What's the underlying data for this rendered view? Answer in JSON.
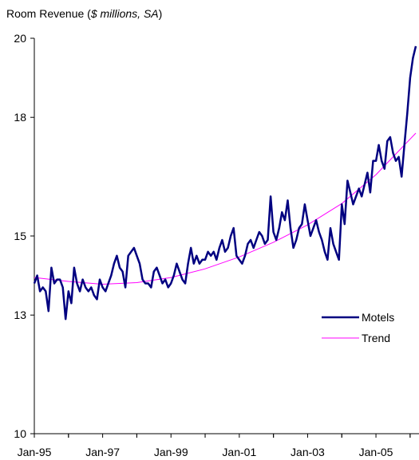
{
  "chart_data": {
    "type": "line",
    "title": {
      "prefix": "Room Revenue (",
      "italic": "$ millions, SA",
      "suffix": ")"
    },
    "xlabel": "",
    "ylabel": "",
    "ylim": [
      10,
      20
    ],
    "y_ticks": [
      10,
      13,
      15,
      18,
      20
    ],
    "x_ticks": [
      "Jan-95",
      "Jan-97",
      "Jan-99",
      "Jan-01",
      "Jan-03",
      "Jan-05"
    ],
    "x_range": [
      "1995-01",
      "2006-03"
    ],
    "grid": false,
    "legend_position": "right-middle",
    "series": [
      {
        "name": "Motels",
        "color": "#000080",
        "x": [
          "1995-01",
          "1995-02",
          "1995-03",
          "1995-04",
          "1995-05",
          "1995-06",
          "1995-07",
          "1995-08",
          "1995-09",
          "1995-10",
          "1995-11",
          "1995-12",
          "1996-01",
          "1996-02",
          "1996-03",
          "1996-04",
          "1996-05",
          "1996-06",
          "1996-07",
          "1996-08",
          "1996-09",
          "1996-10",
          "1996-11",
          "1996-12",
          "1997-01",
          "1997-02",
          "1997-03",
          "1997-04",
          "1997-05",
          "1997-06",
          "1997-07",
          "1997-08",
          "1997-09",
          "1997-10",
          "1997-11",
          "1997-12",
          "1998-01",
          "1998-02",
          "1998-03",
          "1998-04",
          "1998-05",
          "1998-06",
          "1998-07",
          "1998-08",
          "1998-09",
          "1998-10",
          "1998-11",
          "1998-12",
          "1999-01",
          "1999-02",
          "1999-03",
          "1999-04",
          "1999-05",
          "1999-06",
          "1999-07",
          "1999-08",
          "1999-09",
          "1999-10",
          "1999-11",
          "1999-12",
          "2000-01",
          "2000-02",
          "2000-03",
          "2000-04",
          "2000-05",
          "2000-06",
          "2000-07",
          "2000-08",
          "2000-09",
          "2000-10",
          "2000-11",
          "2000-12",
          "2001-01",
          "2001-02",
          "2001-03",
          "2001-04",
          "2001-05",
          "2001-06",
          "2001-07",
          "2001-08",
          "2001-09",
          "2001-10",
          "2001-11",
          "2001-12",
          "2002-01",
          "2002-02",
          "2002-03",
          "2002-04",
          "2002-05",
          "2002-06",
          "2002-07",
          "2002-08",
          "2002-09",
          "2002-10",
          "2002-11",
          "2002-12",
          "2003-01",
          "2003-02",
          "2003-03",
          "2003-04",
          "2003-05",
          "2003-06",
          "2003-07",
          "2003-08",
          "2003-09",
          "2003-10",
          "2003-11",
          "2003-12",
          "2004-01",
          "2004-02",
          "2004-03",
          "2004-04",
          "2004-05",
          "2004-06",
          "2004-07",
          "2004-08",
          "2004-09",
          "2004-10",
          "2004-11",
          "2004-12",
          "2005-01",
          "2005-02",
          "2005-03",
          "2005-04",
          "2005-05",
          "2005-06",
          "2005-07",
          "2005-08",
          "2005-09",
          "2005-10",
          "2005-11",
          "2005-12",
          "2006-01",
          "2006-02",
          "2006-03"
        ],
        "values": [
          13.8,
          14.0,
          13.6,
          13.7,
          13.6,
          13.1,
          14.2,
          13.8,
          13.9,
          13.9,
          13.7,
          12.9,
          13.6,
          13.3,
          14.2,
          13.8,
          13.6,
          13.9,
          13.7,
          13.6,
          13.7,
          13.5,
          13.4,
          13.9,
          13.7,
          13.6,
          13.8,
          14.0,
          14.3,
          14.5,
          14.2,
          14.1,
          13.7,
          14.5,
          14.6,
          14.7,
          14.5,
          14.3,
          13.9,
          13.8,
          13.8,
          13.7,
          14.1,
          14.2,
          14.0,
          13.8,
          13.9,
          13.7,
          13.8,
          14.0,
          14.3,
          14.1,
          13.9,
          13.8,
          14.3,
          14.7,
          14.3,
          14.5,
          14.3,
          14.4,
          14.4,
          14.6,
          14.5,
          14.6,
          14.4,
          14.7,
          14.9,
          14.6,
          14.7,
          15.0,
          15.2,
          14.5,
          14.4,
          14.3,
          14.5,
          14.8,
          14.9,
          14.7,
          14.9,
          15.1,
          15.0,
          14.8,
          14.9,
          16.0,
          15.1,
          14.9,
          15.2,
          15.6,
          15.4,
          15.9,
          15.2,
          14.7,
          14.9,
          15.2,
          15.3,
          15.8,
          15.4,
          15.0,
          15.2,
          15.4,
          15.1,
          14.9,
          14.6,
          14.4,
          15.2,
          14.8,
          14.6,
          14.4,
          15.8,
          15.3,
          16.4,
          16.1,
          15.8,
          16.0,
          16.2,
          16.0,
          16.3,
          16.6,
          16.1,
          16.9,
          16.9,
          17.3,
          16.9,
          16.7,
          17.4,
          17.5,
          17.1,
          16.9,
          17.0,
          16.5,
          17.3,
          18.1,
          19.0,
          19.5,
          19.8
        ]
      },
      {
        "name": "Trend",
        "color": "#ff00ff",
        "x": [
          "1995-01",
          "1996-01",
          "1997-01",
          "1998-01",
          "1999-01",
          "2000-01",
          "2001-01",
          "2002-01",
          "2003-01",
          "2004-01",
          "2005-01",
          "2006-03"
        ],
        "values": [
          13.95,
          13.85,
          13.78,
          13.82,
          13.95,
          14.17,
          14.47,
          14.84,
          15.28,
          15.82,
          16.55,
          17.6
        ]
      }
    ]
  }
}
